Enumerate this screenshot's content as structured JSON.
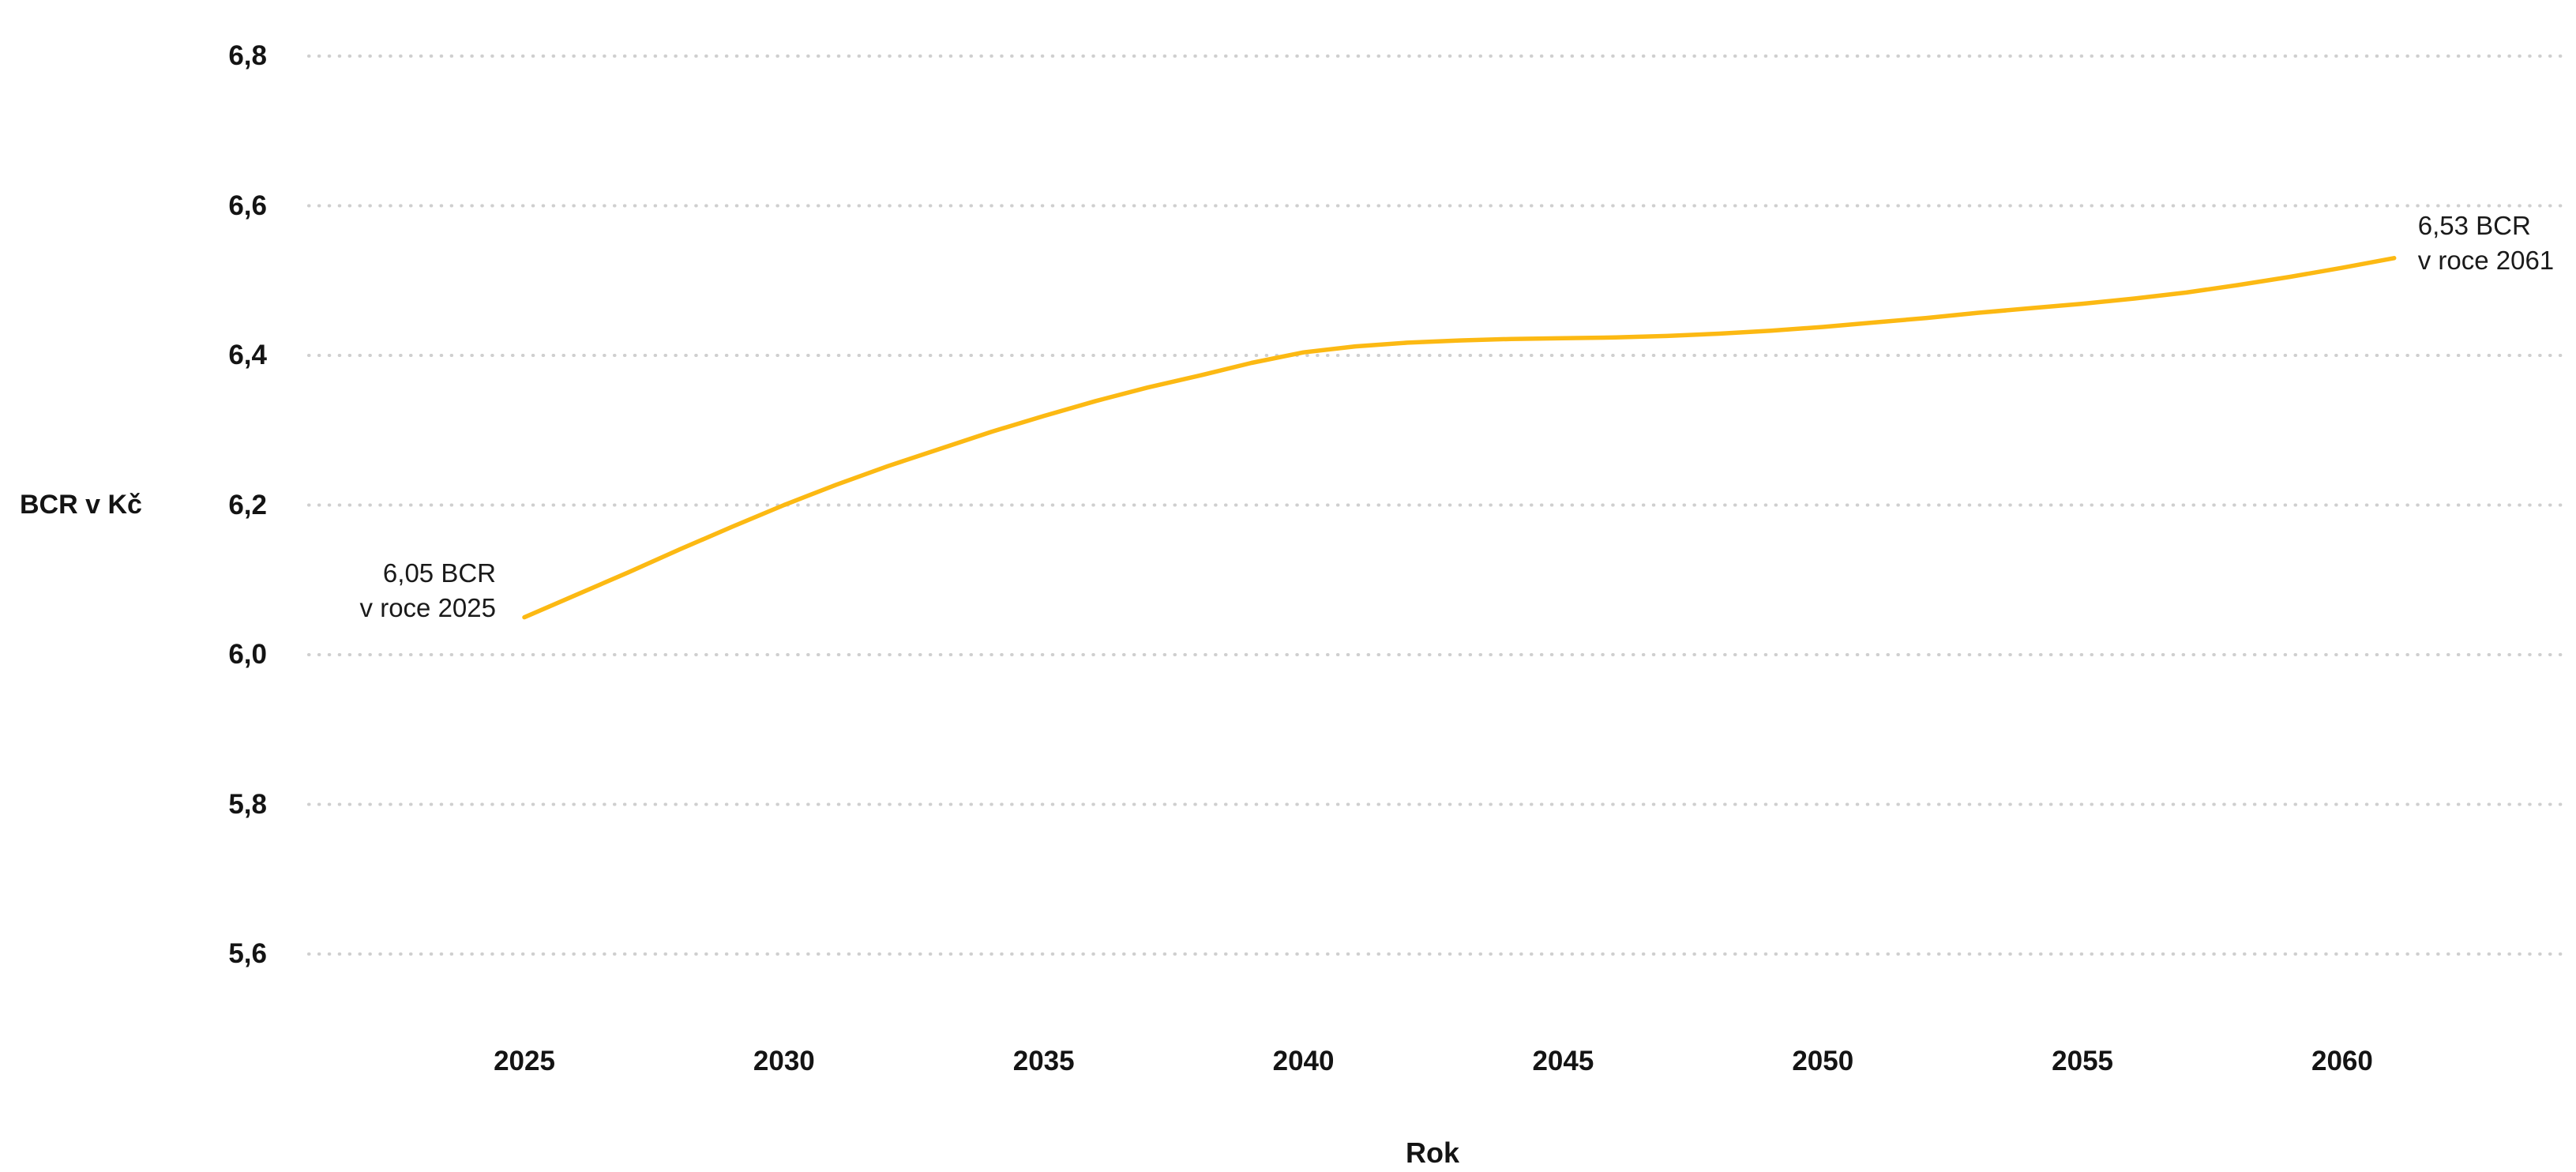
{
  "chart_data": {
    "type": "line",
    "title": "",
    "xlabel": "Rok",
    "ylabel": "BCR v Kč",
    "legend": "none",
    "grid": "horizontal-dotted",
    "xlim": [
      2020.8,
      2064.5
    ],
    "ylim": [
      5.45,
      6.88
    ],
    "x_ticks": [
      {
        "label": "2025",
        "value": 2025
      },
      {
        "label": "2030",
        "value": 2030
      },
      {
        "label": "2035",
        "value": 2035
      },
      {
        "label": "2040",
        "value": 2040
      },
      {
        "label": "2045",
        "value": 2045
      },
      {
        "label": "2050",
        "value": 2050
      },
      {
        "label": "2055",
        "value": 2055
      },
      {
        "label": "2060",
        "value": 2060
      }
    ],
    "y_ticks": [
      {
        "label": "6,8",
        "value": 6.8
      },
      {
        "label": "6,6",
        "value": 6.6
      },
      {
        "label": "6,4",
        "value": 6.4
      },
      {
        "label": "6,2",
        "value": 6.2
      },
      {
        "label": "6,0",
        "value": 6.0
      },
      {
        "label": "5,8",
        "value": 5.8
      },
      {
        "label": "5,6",
        "value": 5.6
      }
    ],
    "series": [
      {
        "name": "BCR",
        "points": [
          [
            2025,
            6.05
          ],
          [
            2026,
            6.08
          ],
          [
            2027,
            6.11
          ],
          [
            2028,
            6.141
          ],
          [
            2029,
            6.171
          ],
          [
            2030,
            6.2
          ],
          [
            2031,
            6.227
          ],
          [
            2032,
            6.252
          ],
          [
            2033,
            6.275
          ],
          [
            2034,
            6.298
          ],
          [
            2035,
            6.319
          ],
          [
            2036,
            6.339
          ],
          [
            2037,
            6.357
          ],
          [
            2038,
            6.373
          ],
          [
            2039,
            6.39
          ],
          [
            2040,
            6.404
          ],
          [
            2041,
            6.412
          ],
          [
            2042,
            6.417
          ],
          [
            2043,
            6.42
          ],
          [
            2044,
            6.422
          ],
          [
            2045,
            6.423
          ],
          [
            2046,
            6.424
          ],
          [
            2047,
            6.426
          ],
          [
            2048,
            6.429
          ],
          [
            2049,
            6.433
          ],
          [
            2050,
            6.438
          ],
          [
            2051,
            6.444
          ],
          [
            2052,
            6.45
          ],
          [
            2053,
            6.457
          ],
          [
            2054,
            6.463
          ],
          [
            2055,
            6.469
          ],
          [
            2056,
            6.476
          ],
          [
            2057,
            6.484
          ],
          [
            2058,
            6.494
          ],
          [
            2059,
            6.505
          ],
          [
            2060,
            6.517
          ],
          [
            2061,
            6.53
          ]
        ]
      }
    ],
    "annotations": [
      {
        "text_lines": [
          "6,05 BCR",
          "v roce 2025"
        ],
        "x": 2025,
        "y": 6.05,
        "align": "right"
      },
      {
        "text_lines": [
          "6,53 BCR",
          "v roce 2061"
        ],
        "x": 2061,
        "y": 6.53,
        "align": "left"
      }
    ],
    "colors": {
      "line": "#FCB913",
      "grid": "#CFCFCF",
      "text": "#141414"
    }
  }
}
